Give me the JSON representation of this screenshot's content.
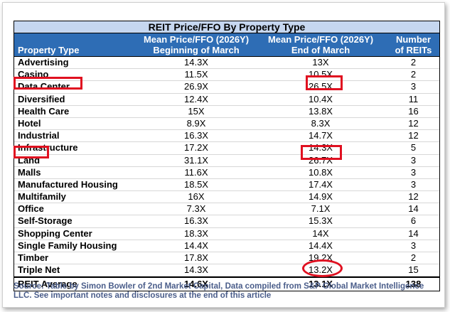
{
  "table": {
    "title": "REIT Price/FFO By Property Type",
    "headers": [
      [
        "Property Type"
      ],
      [
        "Mean Price/FFO (2026Y)",
        "Beginning of March"
      ],
      [
        "Mean Price/FFO (2026Y)",
        "End of March"
      ],
      [
        "Number",
        "of REITs"
      ]
    ],
    "rows": [
      [
        "Advertising",
        "14.3X",
        "13X",
        "2"
      ],
      [
        "Casino",
        "11.5X",
        "10.5X",
        "2"
      ],
      [
        "Data Center",
        "26.9X",
        "26.5X",
        "3"
      ],
      [
        "Diversified",
        "12.4X",
        "10.4X",
        "11"
      ],
      [
        "Health Care",
        "15X",
        "13.8X",
        "16"
      ],
      [
        "Hotel",
        "8.9X",
        "8.3X",
        "12"
      ],
      [
        "Industrial",
        "16.3X",
        "14.7X",
        "12"
      ],
      [
        "Infrastructure",
        "17.2X",
        "14.3X",
        "5"
      ],
      [
        "Land",
        "31.1X",
        "26.7X",
        "3"
      ],
      [
        "Malls",
        "11.6X",
        "10.8X",
        "3"
      ],
      [
        "Manufactured Housing",
        "18.5X",
        "17.4X",
        "3"
      ],
      [
        "Multifamily",
        "16X",
        "14.9X",
        "12"
      ],
      [
        "Office",
        "7.3X",
        "7.1X",
        "14"
      ],
      [
        "Self-Storage",
        "16.3X",
        "15.3X",
        "6"
      ],
      [
        "Shopping Center",
        "18.3X",
        "14X",
        "14"
      ],
      [
        "Single Family Housing",
        "14.4X",
        "14.4X",
        "3"
      ],
      [
        "Timber",
        "17.8X",
        "19.2X",
        "2"
      ],
      [
        "Triple Net",
        "14.3X",
        "13.2X",
        "15"
      ]
    ],
    "average": [
      "REIT Average",
      "14.6X",
      "13.1X",
      "138"
    ]
  },
  "source_note": "Source: Table by Simon Bowler of 2nd Market Capital, Data compiled from S&P Global Market Intelligence LLC. See important notes and disclosures at the end of this article",
  "highlight_color": "#e01020",
  "header_color": "#2e6db5",
  "title_bar_color": "#c6d7f0"
}
